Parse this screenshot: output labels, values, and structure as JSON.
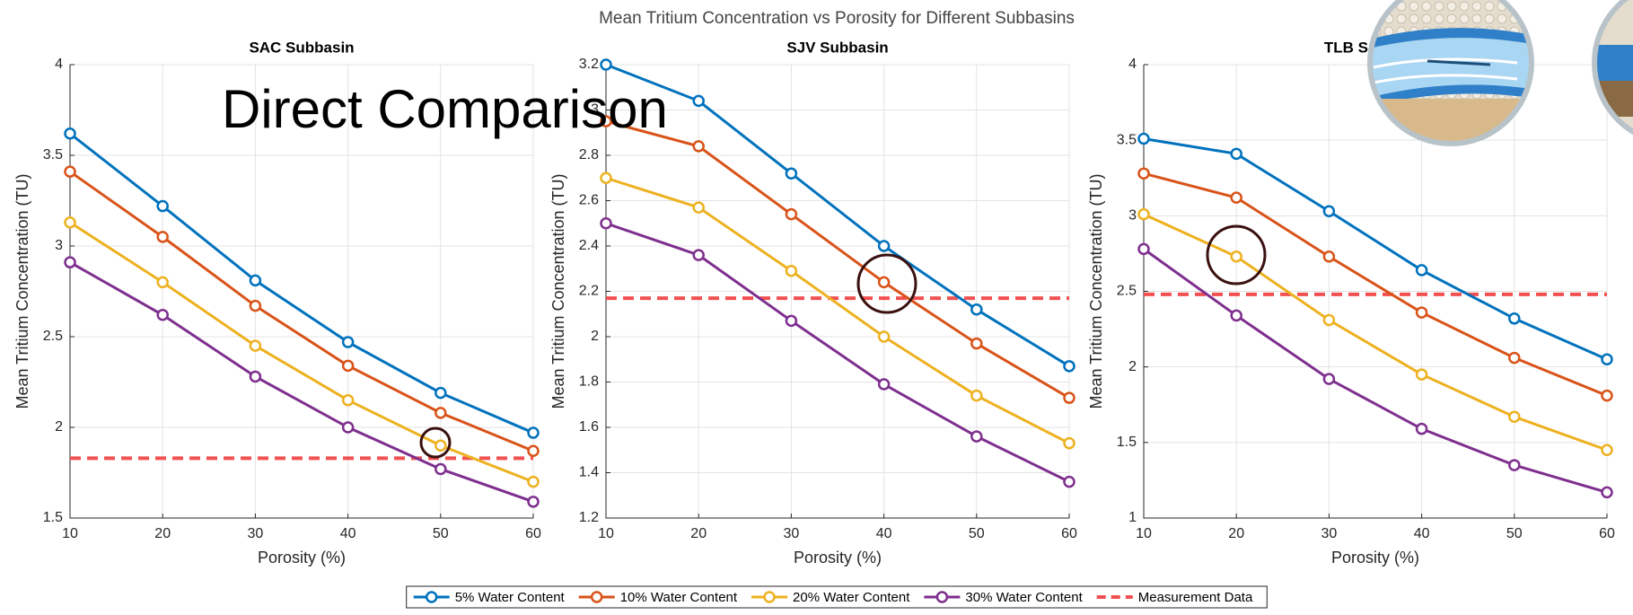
{
  "title": "Mean Tritium Concentration vs Porosity for Different Subbasins",
  "annotation": "Direct Comparison",
  "chart_data": [
    {
      "type": "line",
      "title": "SAC Subbasin",
      "xlabel": "Porosity (%)",
      "ylabel": "Mean Tritium Concentration (TU)",
      "x": [
        10,
        20,
        30,
        40,
        50,
        60
      ],
      "xlim": [
        10,
        60
      ],
      "xticks": [
        10,
        20,
        30,
        40,
        50,
        60
      ],
      "ylim": [
        1.5,
        4
      ],
      "yticks": [
        1.5,
        2,
        2.5,
        3,
        3.5,
        4
      ],
      "grid": true,
      "series": [
        {
          "name": "5% Water Content",
          "color": "#0072bd",
          "values": [
            3.62,
            3.22,
            2.81,
            2.47,
            2.19,
            1.97
          ]
        },
        {
          "name": "10% Water Content",
          "color": "#d95319",
          "values": [
            3.41,
            3.05,
            2.67,
            2.34,
            2.08,
            1.87
          ]
        },
        {
          "name": "20% Water Content",
          "color": "#edb120",
          "values": [
            3.13,
            2.8,
            2.45,
            2.15,
            1.9,
            1.7
          ]
        },
        {
          "name": "30% Water Content",
          "color": "#7e2f8e",
          "values": [
            2.91,
            2.62,
            2.28,
            2.0,
            1.77,
            1.59
          ]
        }
      ],
      "measurement": {
        "name": "Measurement Data",
        "color": "#f25050",
        "value": 1.83
      }
    },
    {
      "type": "line",
      "title": "SJV Subbasin",
      "xlabel": "Porosity (%)",
      "ylabel": "Mean Tritium Concentration (TU)",
      "x": [
        10,
        20,
        30,
        40,
        50,
        60
      ],
      "xlim": [
        10,
        60
      ],
      "xticks": [
        10,
        20,
        30,
        40,
        50,
        60
      ],
      "ylim": [
        1.2,
        3.2
      ],
      "yticks": [
        1.2,
        1.4,
        1.6,
        1.8,
        2,
        2.2,
        2.4,
        2.6,
        2.8,
        3,
        3.2
      ],
      "grid": true,
      "series": [
        {
          "name": "5% Water Content",
          "color": "#0072bd",
          "values": [
            3.2,
            3.04,
            2.72,
            2.4,
            2.12,
            1.87
          ]
        },
        {
          "name": "10% Water Content",
          "color": "#d95319",
          "values": [
            2.95,
            2.84,
            2.54,
            2.24,
            1.97,
            1.73
          ]
        },
        {
          "name": "20% Water Content",
          "color": "#edb120",
          "values": [
            2.7,
            2.57,
            2.29,
            2.0,
            1.74,
            1.53
          ]
        },
        {
          "name": "30% Water Content",
          "color": "#7e2f8e",
          "values": [
            2.5,
            2.36,
            2.07,
            1.79,
            1.56,
            1.36
          ]
        }
      ],
      "measurement": {
        "name": "Measurement Data",
        "color": "#f25050",
        "value": 2.17
      }
    },
    {
      "type": "line",
      "title": "TLB Subbasin",
      "xlabel": "Porosity (%)",
      "ylabel": "Mean Tritium Concentration (TU)",
      "x": [
        10,
        20,
        30,
        40,
        50,
        60
      ],
      "xlim": [
        10,
        60
      ],
      "xticks": [
        10,
        20,
        30,
        40,
        50,
        60
      ],
      "ylim": [
        1,
        4
      ],
      "yticks": [
        1,
        1.5,
        2,
        2.5,
        3,
        3.5,
        4
      ],
      "grid": true,
      "series": [
        {
          "name": "5% Water Content",
          "color": "#0072bd",
          "values": [
            3.51,
            3.41,
            3.03,
            2.64,
            2.32,
            2.05
          ]
        },
        {
          "name": "10% Water Content",
          "color": "#d95319",
          "values": [
            3.28,
            3.12,
            2.73,
            2.36,
            2.06,
            1.81
          ]
        },
        {
          "name": "20% Water Content",
          "color": "#edb120",
          "values": [
            3.01,
            2.73,
            2.31,
            1.95,
            1.67,
            1.45
          ]
        },
        {
          "name": "30% Water Content",
          "color": "#7e2f8e",
          "values": [
            2.78,
            2.34,
            1.92,
            1.59,
            1.35,
            1.17
          ]
        }
      ],
      "measurement": {
        "name": "Measurement Data",
        "color": "#f25050",
        "value": 2.48
      }
    }
  ]
}
